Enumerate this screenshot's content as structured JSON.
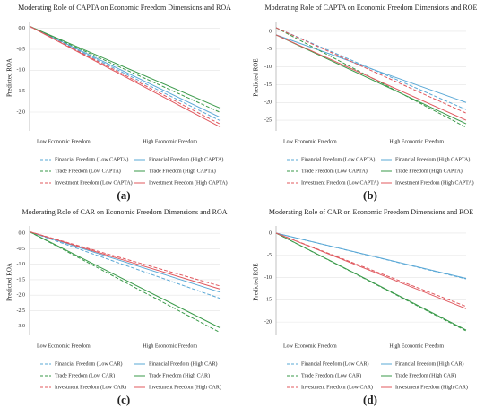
{
  "chart_data": [
    {
      "type": "line",
      "title": "Moderating Role of CAPTA on Economic Freedom Dimensions and ROA",
      "y_label": "Predicted ROA",
      "categories": [
        "Low Economic Freedom",
        "High Economic Freedom"
      ],
      "ylim": [
        -2.45,
        0.1
      ],
      "yticks": [
        {
          "value": 0,
          "label": "0.0"
        },
        -0.5,
        {
          "value": -1,
          "label": "-1.0"
        },
        -1.5,
        {
          "value": -2,
          "label": "-2.0"
        }
      ],
      "grid": true,
      "panel_label": "(a)",
      "series": [
        {
          "name": "Financial Freedom (Low CAPTA)",
          "color": "#5aa8d6",
          "dashed": true,
          "values": [
            0.05,
            -2.2
          ]
        },
        {
          "name": "Financial Freedom (High CAPTA)",
          "color": "#5aa8d6",
          "dashed": false,
          "values": [
            0.05,
            -2.12
          ]
        },
        {
          "name": "Trade Freedom (Low CAPTA)",
          "color": "#3a9a4a",
          "dashed": true,
          "values": [
            0.05,
            -2.0
          ]
        },
        {
          "name": "Trade Freedom (High CAPTA)",
          "color": "#3a9a4a",
          "dashed": false,
          "values": [
            0.05,
            -1.9
          ]
        },
        {
          "name": "Investment Freedom (Low CAPTA)",
          "color": "#e0585e",
          "dashed": true,
          "values": [
            0.05,
            -2.28
          ]
        },
        {
          "name": "Investment Freedom (High CAPTA)",
          "color": "#e0585e",
          "dashed": false,
          "values": [
            0.05,
            -2.35
          ]
        }
      ]
    },
    {
      "type": "line",
      "title": "Moderating Role of CAPTA on Economic Freedom Dimensions and ROE",
      "y_label": "Predicted ROE",
      "categories": [
        "Low Economic Freedom",
        "High Economic Freedom"
      ],
      "ylim": [
        -28,
        2
      ],
      "yticks": [
        0,
        -5,
        -10,
        -15,
        -20,
        -25
      ],
      "grid": true,
      "panel_label": "(b)",
      "series": [
        {
          "name": "Financial Freedom (Low CAPTA)",
          "color": "#5aa8d6",
          "dashed": true,
          "values": [
            1,
            -22
          ]
        },
        {
          "name": "Financial Freedom (High CAPTA)",
          "color": "#5aa8d6",
          "dashed": false,
          "values": [
            -1,
            -20
          ]
        },
        {
          "name": "Trade Freedom (Low CAPTA)",
          "color": "#3a9a4a",
          "dashed": true,
          "values": [
            1,
            -27
          ]
        },
        {
          "name": "Trade Freedom (High CAPTA)",
          "color": "#3a9a4a",
          "dashed": false,
          "values": [
            -1,
            -26
          ]
        },
        {
          "name": "Investment Freedom (Low CAPTA)",
          "color": "#e0585e",
          "dashed": true,
          "values": [
            1,
            -23
          ]
        },
        {
          "name": "Investment Freedom (High CAPTA)",
          "color": "#e0585e",
          "dashed": false,
          "values": [
            -1,
            -25
          ]
        }
      ]
    },
    {
      "type": "line",
      "title": "Moderating Role of CAR on Economic Freedom Dimensions and ROA",
      "y_label": "Predicted ROA",
      "categories": [
        "Low Economic Freedom",
        "High Economic Freedom"
      ],
      "ylim": [
        -3.3,
        0.15
      ],
      "yticks": [
        {
          "value": 0,
          "label": "0.0"
        },
        -0.5,
        {
          "value": -1,
          "label": "-1.0"
        },
        -1.5,
        {
          "value": -2,
          "label": "-2.0"
        },
        -2.5,
        {
          "value": -3,
          "label": "-3.0"
        }
      ],
      "grid": true,
      "panel_label": "(c)",
      "series": [
        {
          "name": "Financial Freedom (Low CAR)",
          "color": "#5aa8d6",
          "dashed": true,
          "values": [
            0.05,
            -2.1
          ]
        },
        {
          "name": "Financial Freedom (High CAR)",
          "color": "#5aa8d6",
          "dashed": false,
          "values": [
            0.05,
            -1.9
          ]
        },
        {
          "name": "Trade Freedom (Low CAR)",
          "color": "#3a9a4a",
          "dashed": true,
          "values": [
            0.05,
            -3.2
          ]
        },
        {
          "name": "Trade Freedom (High CAR)",
          "color": "#3a9a4a",
          "dashed": false,
          "values": [
            0.05,
            -3.05
          ]
        },
        {
          "name": "Investment Freedom (Low CAR)",
          "color": "#e0585e",
          "dashed": true,
          "values": [
            0.05,
            -1.7
          ]
        },
        {
          "name": "Investment Freedom (High CAR)",
          "color": "#e0585e",
          "dashed": false,
          "values": [
            0.05,
            -1.8
          ]
        }
      ]
    },
    {
      "type": "line",
      "title": "Moderating Role of CAR on Economic Freedom Dimensions and ROE",
      "y_label": "Predicted ROE",
      "categories": [
        "Low Economic Freedom",
        "High Economic Freedom"
      ],
      "ylim": [
        -23,
        1
      ],
      "yticks": [
        0,
        -5,
        -10,
        -15,
        -20
      ],
      "grid": true,
      "panel_label": "(d)",
      "series": [
        {
          "name": "Financial Freedom (Low CAR)",
          "color": "#5aa8d6",
          "dashed": true,
          "values": [
            0,
            -10.3
          ]
        },
        {
          "name": "Financial Freedom (High CAR)",
          "color": "#5aa8d6",
          "dashed": false,
          "values": [
            0,
            -10.2
          ]
        },
        {
          "name": "Trade Freedom (Low CAR)",
          "color": "#3a9a4a",
          "dashed": true,
          "values": [
            0,
            -22
          ]
        },
        {
          "name": "Trade Freedom (High CAR)",
          "color": "#3a9a4a",
          "dashed": false,
          "values": [
            0,
            -21.8
          ]
        },
        {
          "name": "Investment Freedom (Low CAR)",
          "color": "#e0585e",
          "dashed": true,
          "values": [
            0,
            -16.5
          ]
        },
        {
          "name": "Investment Freedom (High CAR)",
          "color": "#e0585e",
          "dashed": false,
          "values": [
            0,
            -17
          ]
        }
      ]
    }
  ]
}
